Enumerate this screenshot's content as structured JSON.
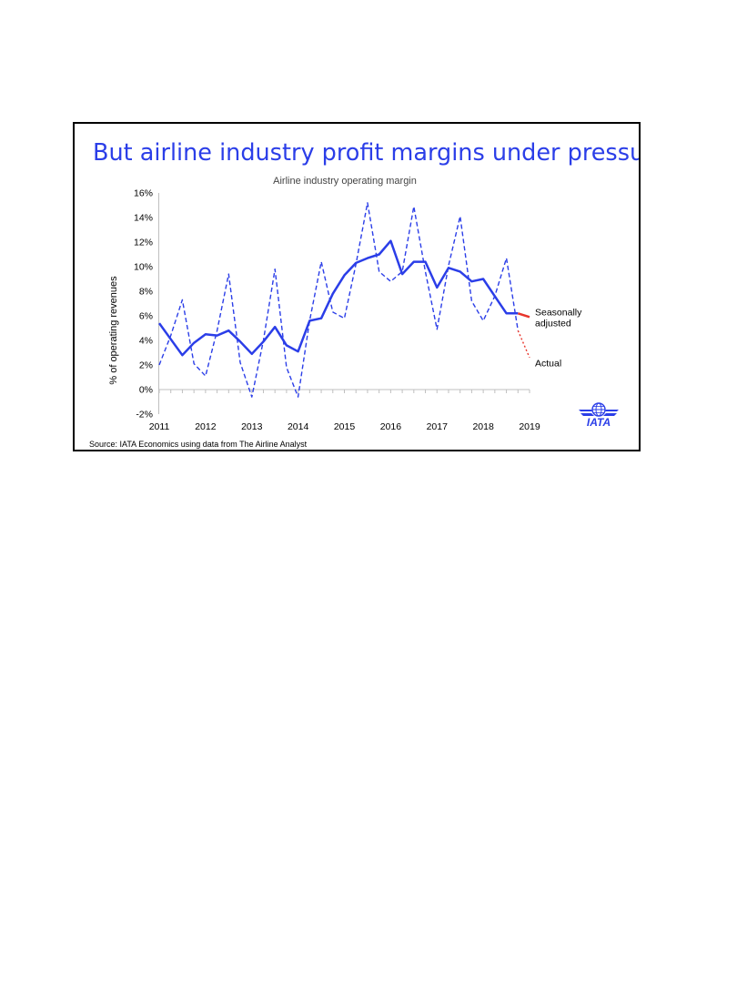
{
  "slide": {
    "title": "But airline industry profit margins under pressure",
    "source": "Source: IATA Economics using data from The Airline Analyst",
    "logo_text": "IATA"
  },
  "colors": {
    "title": "#2b3ee8",
    "series": "#2b3ee8",
    "forecast": "#e8352b",
    "border": "#000000"
  },
  "icons": [
    "iata-logo-icon"
  ],
  "chart_data": {
    "type": "line",
    "title": "Airline industry operating margin",
    "ylabel": "% of operating revenues",
    "xlabel": "",
    "ylim": [
      -2,
      16
    ],
    "yticks": [
      "-2%",
      "0%",
      "2%",
      "4%",
      "6%",
      "8%",
      "10%",
      "12%",
      "14%",
      "16%"
    ],
    "yvalues": [
      -2,
      0,
      2,
      4,
      6,
      8,
      10,
      12,
      14,
      16
    ],
    "xticks": [
      "2011",
      "2012",
      "2013",
      "2014",
      "2015",
      "2016",
      "2017",
      "2018",
      "2019"
    ],
    "xlim": [
      2011,
      2019
    ],
    "grid": false,
    "series": [
      {
        "name": "Seasonally adjusted",
        "style": "solid",
        "x": [
          2011.0,
          2011.25,
          2011.5,
          2011.75,
          2012.0,
          2012.25,
          2012.5,
          2012.75,
          2013.0,
          2013.25,
          2013.5,
          2013.75,
          2014.0,
          2014.25,
          2014.5,
          2014.75,
          2015.0,
          2015.25,
          2015.5,
          2015.75,
          2016.0,
          2016.25,
          2016.5,
          2016.75,
          2017.0,
          2017.25,
          2017.5,
          2017.75,
          2018.0,
          2018.25,
          2018.5,
          2018.75
        ],
        "values": [
          5.4,
          4.1,
          2.8,
          3.8,
          4.5,
          4.4,
          4.8,
          3.9,
          2.9,
          3.9,
          5.1,
          3.6,
          3.1,
          5.6,
          5.8,
          7.8,
          9.3,
          10.3,
          10.7,
          11.0,
          12.1,
          9.4,
          10.4,
          10.4,
          8.3,
          9.9,
          9.6,
          8.8,
          9.0,
          7.6,
          6.2,
          6.2
        ]
      },
      {
        "name": "Actual",
        "style": "dashed",
        "x": [
          2011.0,
          2011.25,
          2011.5,
          2011.75,
          2012.0,
          2012.25,
          2012.5,
          2012.75,
          2013.0,
          2013.25,
          2013.5,
          2013.75,
          2014.0,
          2014.25,
          2014.5,
          2014.75,
          2015.0,
          2015.25,
          2015.5,
          2015.75,
          2016.0,
          2016.25,
          2016.5,
          2016.75,
          2017.0,
          2017.25,
          2017.5,
          2017.75,
          2018.0,
          2018.25,
          2018.5,
          2018.75
        ],
        "values": [
          2.0,
          4.4,
          7.3,
          2.1,
          1.1,
          4.8,
          9.4,
          2.2,
          -0.6,
          4.0,
          9.8,
          1.8,
          -0.6,
          5.6,
          10.4,
          6.3,
          5.8,
          10.2,
          15.2,
          9.6,
          8.8,
          9.6,
          14.9,
          9.6,
          4.9,
          10.1,
          14.1,
          7.2,
          5.6,
          7.6,
          10.7,
          4.8
        ]
      }
    ],
    "forecast": [
      {
        "series": "Seasonally adjusted",
        "style": "solid",
        "x": [
          2018.75,
          2019.0
        ],
        "values": [
          6.2,
          5.9
        ]
      },
      {
        "series": "Actual",
        "style": "dotted",
        "x": [
          2018.75,
          2019.0
        ],
        "values": [
          4.8,
          2.6
        ]
      }
    ],
    "annotations": [
      {
        "lines": [
          "Seasonally",
          "adjusted"
        ]
      },
      {
        "lines": [
          "Actual"
        ]
      }
    ]
  }
}
